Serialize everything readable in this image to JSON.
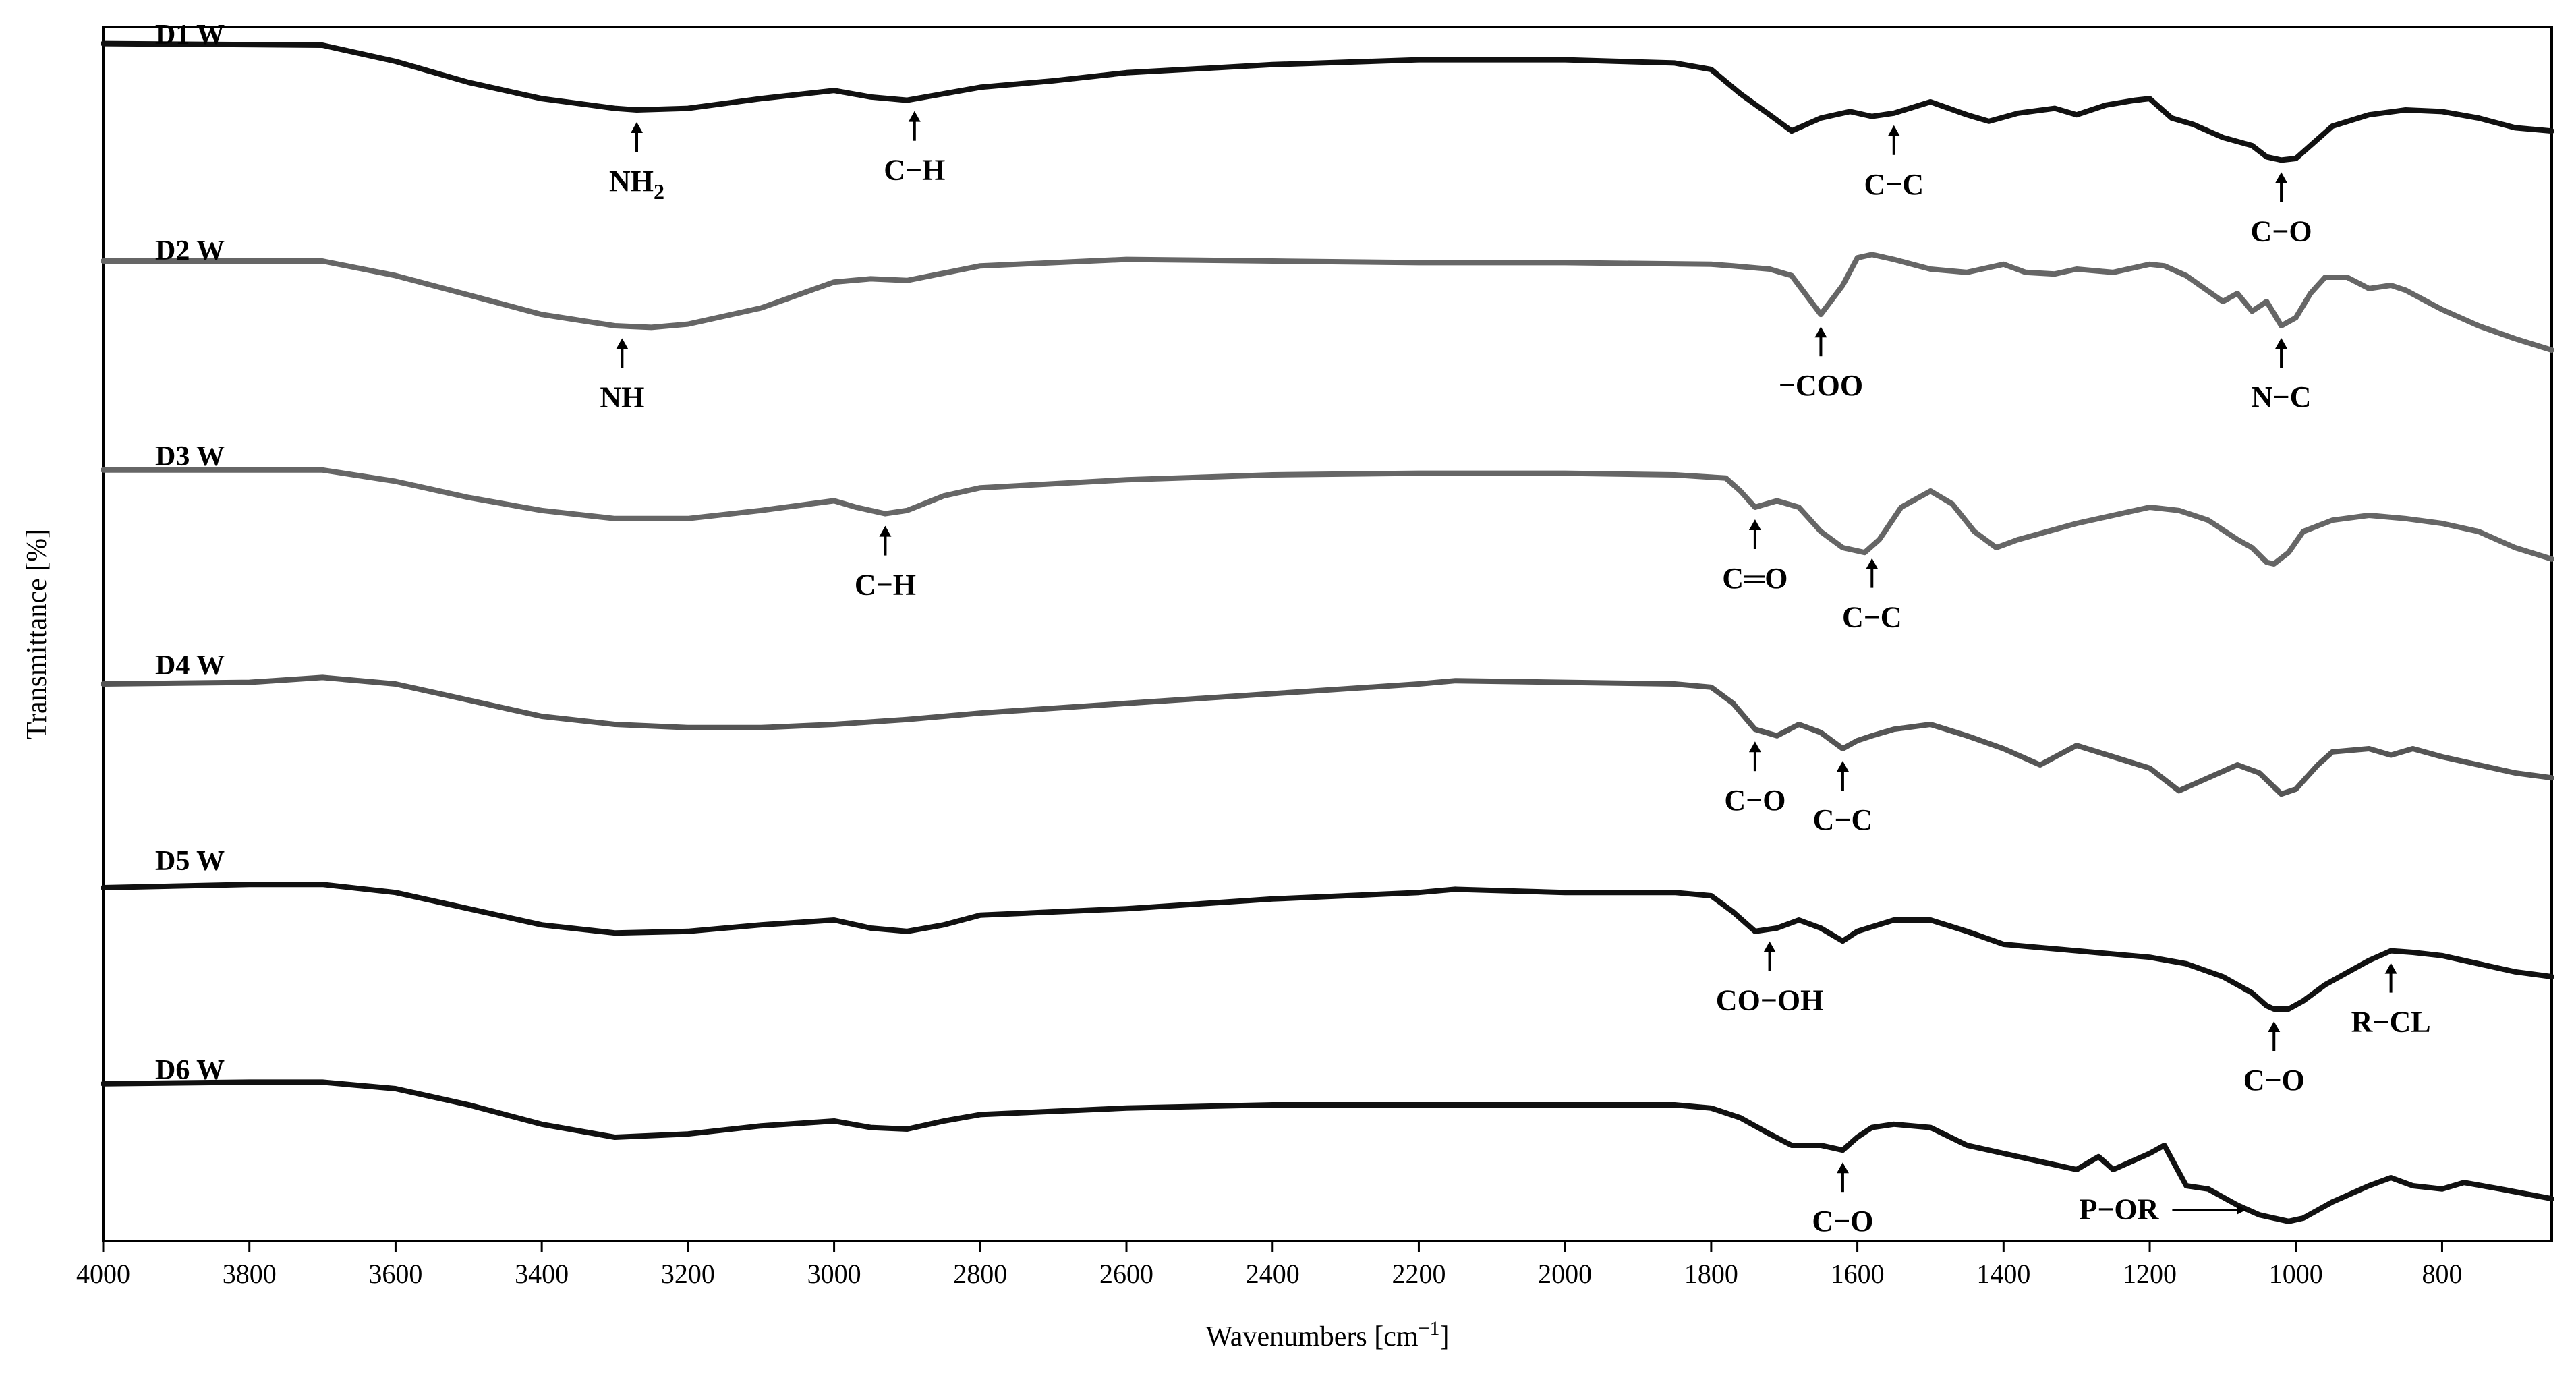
{
  "chart_data": {
    "type": "line",
    "xlabel_main": "Wavenumbers [cm",
    "xlabel_sup": "−1",
    "xlabel_end": "]",
    "ylabel": "Transmittance [%]",
    "xlim": [
      4000,
      650
    ],
    "x_reversed": true,
    "x_ticks": [
      4000,
      3800,
      3600,
      3400,
      3200,
      3000,
      2800,
      2600,
      2400,
      2200,
      2000,
      1800,
      1600,
      1400,
      1200,
      1000,
      800
    ],
    "y_ticks_shown": false,
    "grid": false,
    "legend": "none",
    "series": [
      {
        "name": "D1 W",
        "color": "#111111",
        "x": [
          4000,
          3700,
          3600,
          3500,
          3400,
          3300,
          3270,
          3200,
          3100,
          3000,
          2950,
          2900,
          2850,
          2800,
          2700,
          2600,
          2400,
          2200,
          2000,
          1850,
          1800,
          1760,
          1720,
          1690,
          1650,
          1610,
          1580,
          1550,
          1500,
          1450,
          1420,
          1380,
          1330,
          1300,
          1260,
          1220,
          1200,
          1170,
          1140,
          1100,
          1060,
          1040,
          1020,
          1000,
          980,
          950,
          900,
          850,
          800,
          750,
          700,
          650
        ],
        "y": [
          0.96,
          0.95,
          0.85,
          0.72,
          0.62,
          0.56,
          0.55,
          0.56,
          0.62,
          0.67,
          0.63,
          0.61,
          0.65,
          0.69,
          0.73,
          0.78,
          0.83,
          0.86,
          0.86,
          0.84,
          0.8,
          0.65,
          0.52,
          0.42,
          0.5,
          0.54,
          0.51,
          0.53,
          0.6,
          0.52,
          0.48,
          0.53,
          0.56,
          0.52,
          0.58,
          0.61,
          0.62,
          0.5,
          0.46,
          0.38,
          0.33,
          0.26,
          0.24,
          0.25,
          0.33,
          0.45,
          0.52,
          0.55,
          0.54,
          0.5,
          0.44,
          0.42
        ]
      },
      {
        "name": "D2 W",
        "color": "#666666",
        "x": [
          4000,
          3700,
          3600,
          3500,
          3400,
          3300,
          3250,
          3200,
          3100,
          3000,
          2950,
          2900,
          2800,
          2600,
          2400,
          2200,
          2000,
          1800,
          1770,
          1720,
          1690,
          1650,
          1620,
          1600,
          1580,
          1550,
          1500,
          1450,
          1400,
          1370,
          1330,
          1300,
          1250,
          1200,
          1180,
          1150,
          1100,
          1080,
          1060,
          1040,
          1020,
          1000,
          980,
          960,
          930,
          900,
          870,
          850,
          800,
          750,
          700,
          650
        ],
        "y": [
          0.95,
          0.95,
          0.86,
          0.74,
          0.62,
          0.55,
          0.54,
          0.56,
          0.66,
          0.82,
          0.84,
          0.83,
          0.92,
          0.96,
          0.95,
          0.94,
          0.94,
          0.93,
          0.92,
          0.9,
          0.86,
          0.62,
          0.8,
          0.97,
          0.99,
          0.96,
          0.9,
          0.88,
          0.93,
          0.88,
          0.87,
          0.9,
          0.88,
          0.93,
          0.92,
          0.86,
          0.7,
          0.75,
          0.64,
          0.7,
          0.55,
          0.6,
          0.75,
          0.85,
          0.85,
          0.78,
          0.8,
          0.77,
          0.65,
          0.55,
          0.47,
          0.4
        ]
      },
      {
        "name": "D3 W",
        "color": "#666666",
        "x": [
          4000,
          3700,
          3600,
          3500,
          3400,
          3300,
          3200,
          3100,
          3000,
          2970,
          2930,
          2900,
          2850,
          2800,
          2600,
          2400,
          2200,
          2000,
          1850,
          1780,
          1760,
          1740,
          1710,
          1680,
          1650,
          1620,
          1590,
          1570,
          1540,
          1500,
          1470,
          1440,
          1410,
          1380,
          1300,
          1250,
          1200,
          1160,
          1120,
          1080,
          1060,
          1040,
          1030,
          1010,
          990,
          950,
          900,
          850,
          800,
          750,
          700,
          650
        ],
        "y": [
          0.93,
          0.93,
          0.86,
          0.76,
          0.68,
          0.63,
          0.63,
          0.68,
          0.74,
          0.7,
          0.66,
          0.68,
          0.77,
          0.82,
          0.87,
          0.9,
          0.91,
          0.91,
          0.9,
          0.88,
          0.8,
          0.7,
          0.74,
          0.7,
          0.55,
          0.45,
          0.42,
          0.5,
          0.7,
          0.8,
          0.72,
          0.55,
          0.45,
          0.5,
          0.6,
          0.65,
          0.7,
          0.68,
          0.62,
          0.5,
          0.45,
          0.36,
          0.35,
          0.42,
          0.55,
          0.62,
          0.65,
          0.63,
          0.6,
          0.55,
          0.45,
          0.38
        ]
      },
      {
        "name": "D4 W",
        "color": "#555555",
        "x": [
          4000,
          3800,
          3700,
          3600,
          3500,
          3400,
          3300,
          3200,
          3100,
          3000,
          2900,
          2800,
          2600,
          2400,
          2200,
          2150,
          2000,
          1850,
          1800,
          1770,
          1740,
          1710,
          1680,
          1650,
          1620,
          1600,
          1580,
          1550,
          1500,
          1450,
          1400,
          1350,
          1300,
          1250,
          1200,
          1160,
          1130,
          1100,
          1080,
          1050,
          1020,
          1000,
          970,
          950,
          900,
          870,
          840,
          800,
          750,
          700,
          650
        ],
        "y": [
          0.9,
          0.91,
          0.94,
          0.9,
          0.8,
          0.7,
          0.65,
          0.63,
          0.63,
          0.65,
          0.68,
          0.72,
          0.78,
          0.84,
          0.9,
          0.92,
          0.91,
          0.9,
          0.88,
          0.78,
          0.62,
          0.58,
          0.65,
          0.6,
          0.5,
          0.55,
          0.58,
          0.62,
          0.65,
          0.58,
          0.5,
          0.4,
          0.52,
          0.45,
          0.38,
          0.24,
          0.3,
          0.36,
          0.4,
          0.35,
          0.22,
          0.25,
          0.4,
          0.48,
          0.5,
          0.46,
          0.5,
          0.45,
          0.4,
          0.35,
          0.32
        ]
      },
      {
        "name": "D5 W",
        "color": "#111111",
        "x": [
          4000,
          3800,
          3700,
          3600,
          3500,
          3400,
          3300,
          3200,
          3100,
          3000,
          2950,
          2900,
          2850,
          2800,
          2600,
          2400,
          2200,
          2150,
          2000,
          1850,
          1800,
          1770,
          1740,
          1710,
          1680,
          1650,
          1620,
          1600,
          1550,
          1500,
          1450,
          1400,
          1300,
          1200,
          1150,
          1100,
          1060,
          1040,
          1030,
          1010,
          990,
          960,
          900,
          870,
          840,
          800,
          750,
          700,
          650
        ],
        "y": [
          0.85,
          0.87,
          0.87,
          0.82,
          0.72,
          0.62,
          0.57,
          0.58,
          0.62,
          0.65,
          0.6,
          0.58,
          0.62,
          0.68,
          0.72,
          0.78,
          0.82,
          0.84,
          0.82,
          0.82,
          0.8,
          0.7,
          0.58,
          0.6,
          0.65,
          0.6,
          0.52,
          0.58,
          0.65,
          0.65,
          0.58,
          0.5,
          0.46,
          0.42,
          0.38,
          0.3,
          0.2,
          0.12,
          0.1,
          0.1,
          0.15,
          0.25,
          0.4,
          0.46,
          0.45,
          0.43,
          0.38,
          0.33,
          0.3
        ]
      },
      {
        "name": "D6 W",
        "color": "#111111",
        "x": [
          4000,
          3800,
          3700,
          3600,
          3500,
          3400,
          3300,
          3200,
          3100,
          3000,
          2950,
          2900,
          2850,
          2800,
          2600,
          2400,
          2200,
          2000,
          1850,
          1800,
          1760,
          1720,
          1690,
          1650,
          1620,
          1600,
          1580,
          1550,
          1500,
          1450,
          1400,
          1350,
          1300,
          1270,
          1250,
          1200,
          1180,
          1150,
          1120,
          1080,
          1050,
          1030,
          1010,
          990,
          950,
          900,
          870,
          840,
          800,
          770,
          720,
          650
        ],
        "y": [
          0.93,
          0.94,
          0.94,
          0.9,
          0.8,
          0.68,
          0.6,
          0.62,
          0.67,
          0.7,
          0.66,
          0.65,
          0.7,
          0.74,
          0.78,
          0.8,
          0.8,
          0.8,
          0.8,
          0.78,
          0.72,
          0.62,
          0.55,
          0.55,
          0.52,
          0.6,
          0.66,
          0.68,
          0.66,
          0.55,
          0.5,
          0.45,
          0.4,
          0.48,
          0.4,
          0.5,
          0.55,
          0.3,
          0.28,
          0.18,
          0.12,
          0.1,
          0.08,
          0.1,
          0.2,
          0.3,
          0.35,
          0.3,
          0.28,
          0.32,
          0.28,
          0.22
        ]
      }
    ],
    "annotations": [
      {
        "series": 0,
        "text": "NH",
        "sub": "2",
        "at": 3270,
        "arrow": "up"
      },
      {
        "series": 0,
        "text": "C−H",
        "at": 2890,
        "arrow": "up"
      },
      {
        "series": 0,
        "text": "C−C",
        "at": 1550,
        "arrow": "up"
      },
      {
        "series": 0,
        "text": "C−O",
        "at": 1020,
        "arrow": "up"
      },
      {
        "series": 1,
        "text": "NH",
        "at": 3290,
        "arrow": "up"
      },
      {
        "series": 1,
        "text": "−COO",
        "at": 1650,
        "arrow": "up"
      },
      {
        "series": 1,
        "text": "N−C",
        "at": 1020,
        "arrow": "up"
      },
      {
        "series": 2,
        "text": "C−H",
        "at": 2930,
        "arrow": "up"
      },
      {
        "series": 2,
        "text": "C═O",
        "at": 1740,
        "arrow": "up"
      },
      {
        "series": 2,
        "text": "C−C",
        "at": 1580,
        "arrow": "up"
      },
      {
        "series": 3,
        "text": "C−O",
        "at": 1740,
        "arrow": "up"
      },
      {
        "series": 3,
        "text": "C−C",
        "at": 1620,
        "arrow": "up"
      },
      {
        "series": 4,
        "text": "CO−OH",
        "at": 1720,
        "arrow": "up"
      },
      {
        "series": 4,
        "text": "R−CL",
        "at": 870,
        "arrow": "up"
      },
      {
        "series": 4,
        "text": "C−O",
        "at": 1030,
        "arrow": "up"
      },
      {
        "series": 5,
        "text": "C−O",
        "at": 1620,
        "arrow": "up"
      },
      {
        "series": 5,
        "text": "P−OR",
        "at": 1040,
        "arrow": "right"
      }
    ]
  }
}
